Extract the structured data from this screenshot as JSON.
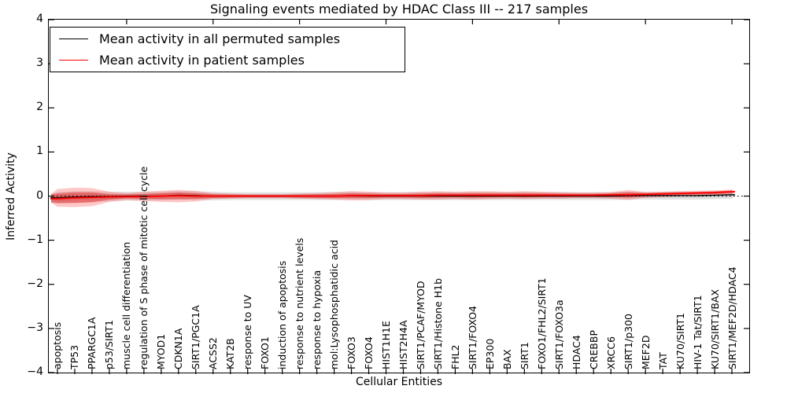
{
  "title": "Signaling events mediated by HDAC Class III -- 217 samples",
  "legend": {
    "entries": [
      {
        "label": "Mean activity in all permuted samples",
        "color": "#000000"
      },
      {
        "label": "Mean activity in patient samples",
        "color": "#ff0000"
      }
    ]
  },
  "colors": {
    "patient_line": "#ff0000",
    "permuted_line": "#000000",
    "patient_fill": "#ff0000",
    "permuted_fill": "#000000",
    "zero_line": "#000000",
    "frame": "#000000"
  },
  "chart_data": {
    "type": "area",
    "title": "Signaling events mediated by HDAC Class III -- 217 samples",
    "xlabel": "Cellular Entities",
    "ylabel": "Inferred Activity",
    "ylim": [
      -4,
      4
    ],
    "yticks": [
      4,
      3,
      2,
      1,
      0,
      -1,
      -2,
      -3,
      -4
    ],
    "grid": false,
    "legend_position": "upper left",
    "top_tick_every": 5,
    "zero_line": 0,
    "categories": [
      "apoptosis",
      "TP53",
      "PPARGC1A",
      "p53/SIRT1",
      "muscle cell differentiation",
      "regulation of S phase of mitotic cell cycle",
      "MYOD1",
      "CDKN1A",
      "SIRT1/PGC1A",
      "ACSS2",
      "KAT2B",
      "response to UV",
      "FOXO1",
      "induction of apoptosis",
      "response to nutrient levels",
      "response to hypoxia",
      "mol:Lysophosphatidic acid",
      "FOXO3",
      "FOXO4",
      "HIST1H1E",
      "HIST2H4A",
      "SIRT1/PCAF/MYOD",
      "SIRT1/Histone H1b",
      "FHL2",
      "SIRT1/FOXO4",
      "EP300",
      "BAX",
      "SIRT1",
      "FOXO1/FHL2/SIRT1",
      "SIRT1/FOXO3a",
      "HDAC4",
      "CREBBP",
      "XRCC6",
      "SIRT1/p300",
      "MEF2D",
      "TAT",
      "KU70/SIRT1",
      "HIV-1 Tat/SIRT1",
      "KU70/SIRT1/BAX",
      "SIRT1/MEF2D/HDAC4"
    ],
    "series": [
      {
        "name": "Mean activity in all permuted samples",
        "color": "#000000",
        "mean": [
          -0.04,
          -0.02,
          -0.01,
          -0.01,
          0,
          0,
          0,
          0.02,
          0.01,
          0,
          0,
          0,
          0,
          0,
          0,
          0,
          0,
          0.01,
          0,
          0,
          0,
          0,
          0,
          0,
          0,
          0,
          0,
          0,
          0,
          0,
          0,
          0,
          0,
          0.01,
          0.01,
          0.01,
          0.01,
          0.01,
          0.02,
          0.03
        ],
        "hi": [
          0.09,
          0.11,
          0.11,
          0.1,
          0.1,
          0.1,
          0.1,
          0.12,
          0.11,
          0.1,
          0.09,
          0.09,
          0.09,
          0.09,
          0.09,
          0.09,
          0.09,
          0.1,
          0.09,
          0.09,
          0.09,
          0.09,
          0.09,
          0.09,
          0.09,
          0.09,
          0.09,
          0.09,
          0.09,
          0.09,
          0.09,
          0.09,
          0.09,
          0.1,
          0.1,
          0.1,
          0.1,
          0.1,
          0.11,
          0.12
        ],
        "lo": [
          -0.17,
          -0.15,
          -0.13,
          -0.12,
          -0.1,
          -0.1,
          -0.1,
          -0.08,
          -0.09,
          -0.1,
          -0.09,
          -0.09,
          -0.09,
          -0.09,
          -0.09,
          -0.09,
          -0.09,
          -0.08,
          -0.09,
          -0.09,
          -0.09,
          -0.09,
          -0.09,
          -0.09,
          -0.09,
          -0.09,
          -0.09,
          -0.09,
          -0.09,
          -0.09,
          -0.09,
          -0.09,
          -0.09,
          -0.08,
          -0.08,
          -0.08,
          -0.08,
          -0.08,
          -0.07,
          -0.06
        ]
      },
      {
        "name": "Mean activity in patient samples",
        "color": "#ff0000",
        "mean": [
          -0.06,
          -0.04,
          -0.03,
          -0.02,
          -0.01,
          -0.01,
          0,
          0.01,
          0,
          0,
          0,
          0,
          0,
          0,
          0,
          0,
          0,
          0.01,
          0.01,
          0.01,
          0.01,
          0.01,
          0.02,
          0.02,
          0.02,
          0.02,
          0.02,
          0.02,
          0.02,
          0.02,
          0.02,
          0.02,
          0.03,
          0.03,
          0.04,
          0.05,
          0.06,
          0.07,
          0.08,
          0.1
        ],
        "hi": [
          0.16,
          0.19,
          0.18,
          0.1,
          0.07,
          0.1,
          0.12,
          0.14,
          0.12,
          0.07,
          0.06,
          0.05,
          0.05,
          0.05,
          0.06,
          0.07,
          0.09,
          0.11,
          0.1,
          0.08,
          0.08,
          0.1,
          0.11,
          0.1,
          0.11,
          0.11,
          0.1,
          0.11,
          0.1,
          0.09,
          0.08,
          0.08,
          0.09,
          0.14,
          0.09,
          0.1,
          0.11,
          0.12,
          0.13,
          0.15
        ],
        "lo": [
          -0.24,
          -0.25,
          -0.23,
          -0.13,
          -0.09,
          -0.11,
          -0.13,
          -0.14,
          -0.12,
          -0.07,
          -0.06,
          -0.05,
          -0.05,
          -0.05,
          -0.06,
          -0.07,
          -0.08,
          -0.1,
          -0.09,
          -0.07,
          -0.07,
          -0.08,
          -0.08,
          -0.07,
          -0.08,
          -0.07,
          -0.06,
          -0.07,
          -0.06,
          -0.06,
          -0.05,
          -0.05,
          -0.06,
          -0.09,
          -0.04,
          -0.02,
          0.0,
          0.01,
          0.02,
          0.04
        ]
      }
    ]
  }
}
